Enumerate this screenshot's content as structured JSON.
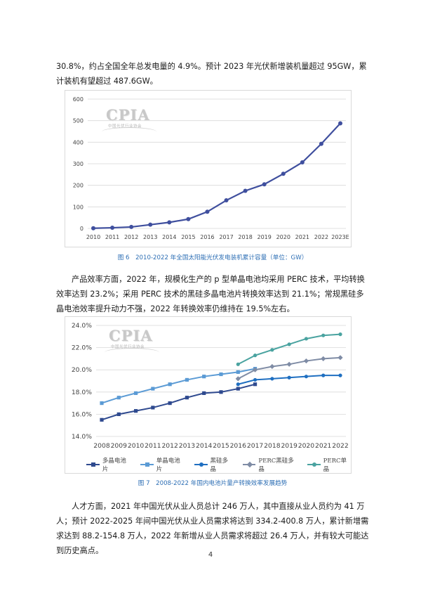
{
  "paragraphs": {
    "p1": "30.8%，约占全国全年总发电量的 4.9%。预计 2023 年光伏新增装机量超过 95GW，累计装机有望超过 487.6GW。",
    "p2": "产品效率方面，2022 年，规模化生产的 p 型单晶电池均采用 PERC 技术，平均转换效率达到 23.2%；采用 PERC 技术的黑硅多晶电池片转换效率达到 21.1%；常规黑硅多晶电池效率提升动力不强，2022 年转换效率仍维持在 19.5%左右。",
    "p3": "人才方面，2021 年中国光伏从业人员总计 246 万人，其中直接从业人员约为 41 万人；预计 2022-2025 年间中国光伏从业人员需求将达到 334.2-400.8 万人，累计新增需求达到 88.2-154.8 万人，2022 年新增从业人员需求将超过 26.4 万人，并有较大可能达到历史高点。"
  },
  "logo": {
    "main": "CPIA",
    "sub": "中国光伏行业协会"
  },
  "captions": {
    "fig6": "图 6　2010-2022 年全国太阳能光伏发电装机累计容量（单位：GW）",
    "fig7": "图 7　2008-2022 年国内电池片量产转换效率发展趋势"
  },
  "page_number": "4",
  "colors": {
    "chart1_line": "#3f4f9e",
    "multi": "#2f4a8f",
    "mono": "#5b9bd5",
    "black_multi": "#1f6fc1",
    "perc_multi": "#7f8ca5",
    "perc_mono": "#4aa3a0",
    "caption": "#2e6fb5"
  },
  "chart_data": [
    {
      "type": "line",
      "categories": [
        "2010",
        "2011",
        "2012",
        "2013",
        "2014",
        "2015",
        "2016",
        "2017",
        "2018",
        "2019",
        "2020",
        "2021",
        "2022",
        "2023E"
      ],
      "series": [
        {
          "values": [
            0.9,
            3.1,
            6.8,
            17.4,
            28.1,
            43.2,
            77.4,
            130.3,
            174.5,
            204.7,
            253.4,
            306.6,
            392.6,
            487.6
          ]
        }
      ],
      "ylim": [
        0,
        600
      ],
      "yticks": [
        "0",
        "100",
        "200",
        "300",
        "400",
        "500",
        "600"
      ],
      "grid": true,
      "xlabel": "",
      "ylabel": ""
    },
    {
      "type": "line",
      "categories": [
        "2008",
        "2009",
        "2010",
        "2011",
        "2012",
        "2013",
        "2014",
        "2015",
        "2016",
        "2017",
        "2018",
        "2019",
        "2020",
        "2021",
        "2022"
      ],
      "series": [
        {
          "name": "多晶电池片",
          "values": [
            15.5,
            16.0,
            16.3,
            16.6,
            17.0,
            17.5,
            17.9,
            18.0,
            18.3,
            18.7,
            null,
            null,
            null,
            null,
            null
          ]
        },
        {
          "name": "单晶电池片",
          "values": [
            17.0,
            17.5,
            17.9,
            18.3,
            18.7,
            19.1,
            19.4,
            19.6,
            19.8,
            20.1,
            null,
            null,
            null,
            null,
            null
          ]
        },
        {
          "name": "黑硅多晶",
          "values": [
            null,
            null,
            null,
            null,
            null,
            null,
            null,
            null,
            18.7,
            19.1,
            19.2,
            19.3,
            19.4,
            19.5,
            19.5
          ]
        },
        {
          "name": "PERC黑硅多晶",
          "values": [
            null,
            null,
            null,
            null,
            null,
            null,
            null,
            null,
            19.2,
            20.0,
            20.3,
            20.5,
            20.8,
            21.0,
            21.1
          ]
        },
        {
          "name": "PERC单晶",
          "values": [
            null,
            null,
            null,
            null,
            null,
            null,
            null,
            null,
            20.5,
            21.3,
            21.8,
            22.3,
            22.8,
            23.1,
            23.2
          ]
        }
      ],
      "ylim": [
        14,
        24
      ],
      "yticks": [
        "14.0%",
        "16.0%",
        "18.0%",
        "20.0%",
        "22.0%",
        "24.0%"
      ],
      "grid": true,
      "legend": "bottom",
      "xlabel": "",
      "ylabel": ""
    }
  ]
}
